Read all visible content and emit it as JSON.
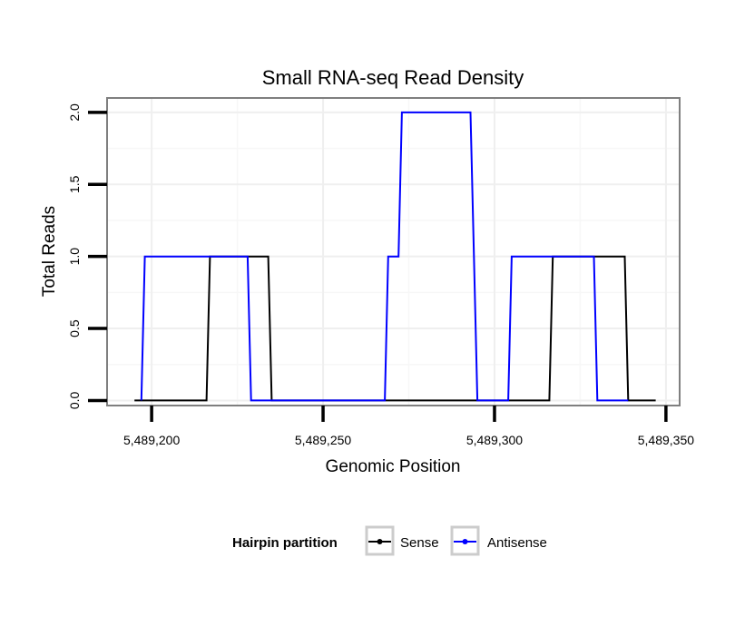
{
  "chart_data": {
    "type": "line",
    "title": "Small RNA-seq Read Density",
    "xlabel": "Genomic Position",
    "ylabel": "Total Reads",
    "xlim": [
      5489187,
      5489354
    ],
    "ylim": [
      -0.035,
      2.1
    ],
    "x_ticks": [
      5489200,
      5489250,
      5489300,
      5489350
    ],
    "x_tick_labels": [
      "5,489,200",
      "5,489,250",
      "5,489,300",
      "5,489,350"
    ],
    "y_ticks": [
      0,
      0.5,
      1,
      1.5,
      2
    ],
    "y_tick_labels": [
      "0.0",
      "0.5",
      "1.0",
      "1.5",
      "2.0"
    ],
    "grid": true,
    "legend": {
      "title": "Hairpin partition",
      "position": "bottom"
    },
    "series": [
      {
        "name": "Sense",
        "color": "#000000",
        "points": [
          [
            5489195,
            0
          ],
          [
            5489216,
            0
          ],
          [
            5489217,
            1
          ],
          [
            5489234,
            1
          ],
          [
            5489235,
            0
          ],
          [
            5489316,
            0
          ],
          [
            5489317,
            1
          ],
          [
            5489338,
            1
          ],
          [
            5489339,
            0
          ],
          [
            5489347,
            0
          ]
        ]
      },
      {
        "name": "Antisense",
        "color": "#0000ff",
        "points": [
          [
            5489197,
            0
          ],
          [
            5489198,
            1
          ],
          [
            5489228,
            1
          ],
          [
            5489229,
            0
          ],
          [
            5489268,
            0
          ],
          [
            5489269,
            1
          ],
          [
            5489272,
            1
          ],
          [
            5489273,
            2
          ],
          [
            5489293,
            2
          ],
          [
            5489295,
            0
          ],
          [
            5489304,
            0
          ],
          [
            5489305,
            1
          ],
          [
            5489329,
            1
          ],
          [
            5489330,
            0
          ],
          [
            5489339,
            0
          ]
        ]
      }
    ]
  }
}
